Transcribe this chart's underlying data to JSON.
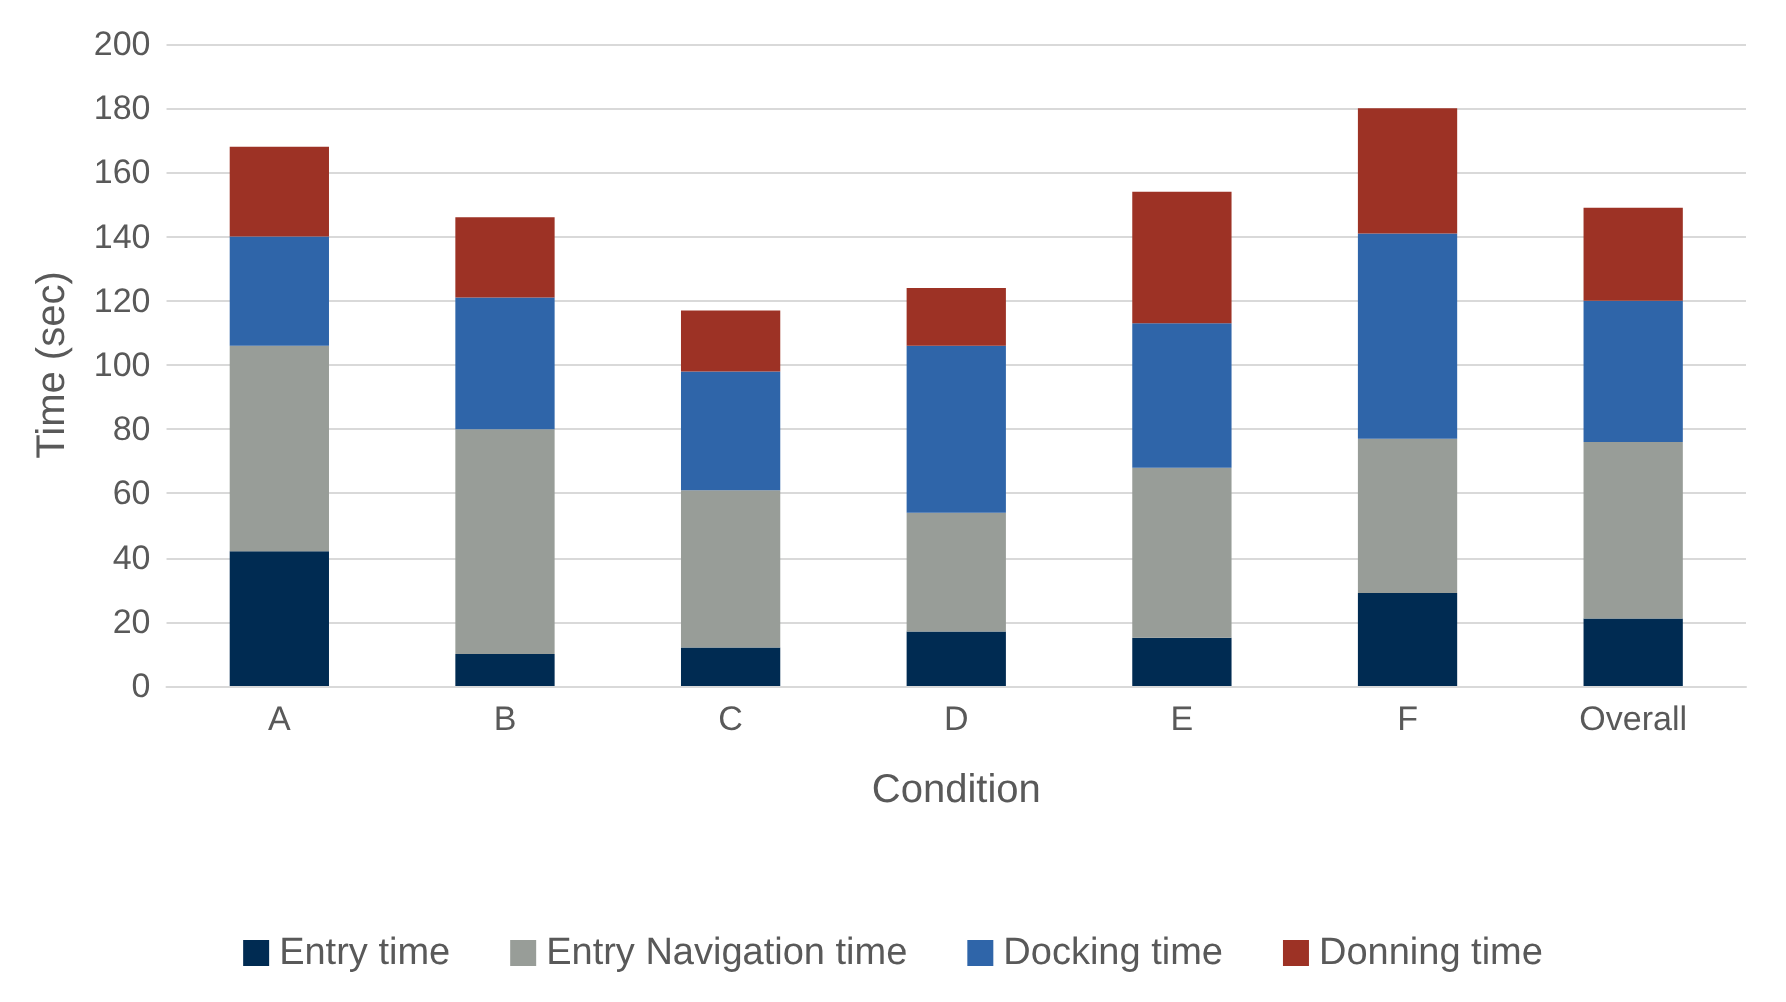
{
  "chart_data": {
    "type": "bar",
    "stacked": true,
    "xlabel": "Condition",
    "ylabel": "Time (sec)",
    "categories": [
      "A",
      "B",
      "C",
      "D",
      "E",
      "F",
      "Overall"
    ],
    "series": [
      {
        "name": "Entry time",
        "color": "#002b52",
        "values": [
          42,
          10,
          12,
          17,
          15,
          29,
          21
        ]
      },
      {
        "name": "Entry Navigation time",
        "color": "#989d98",
        "values": [
          64,
          70,
          49,
          37,
          53,
          48,
          55
        ]
      },
      {
        "name": "Docking time",
        "color": "#2f65a9",
        "values": [
          34,
          41,
          37,
          52,
          45,
          64,
          44
        ]
      },
      {
        "name": "Donning time",
        "color": "#9d3225",
        "values": [
          28,
          25,
          19,
          18,
          41,
          39,
          29
        ]
      }
    ],
    "ylim": [
      0,
      200
    ],
    "yticks": [
      0,
      20,
      40,
      60,
      80,
      100,
      120,
      140,
      160,
      180,
      200
    ],
    "grid": "y",
    "legend": "bottom"
  }
}
